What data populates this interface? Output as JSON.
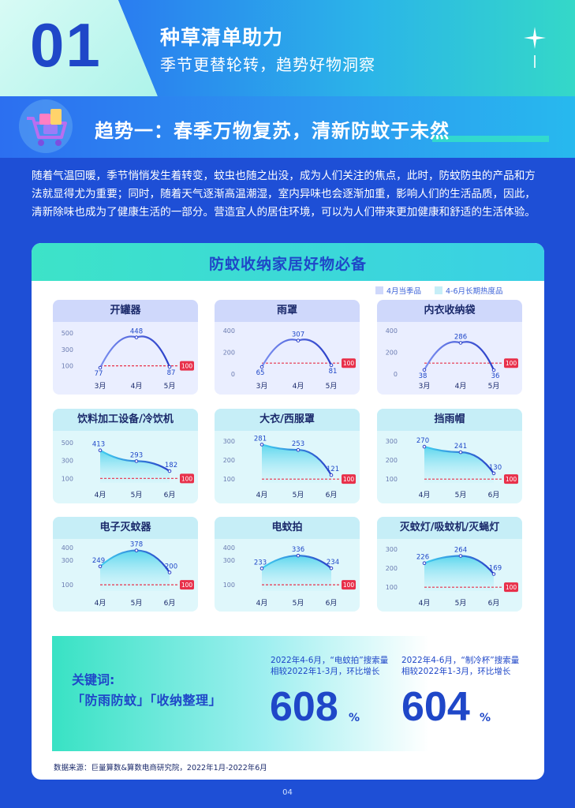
{
  "header": {
    "number": "01",
    "title": "种草清单助力",
    "subtitle": "季节更替轮转，趋势好物洞察"
  },
  "trend": {
    "title": "趋势一：春季万物复苏，清新防蚊于未然"
  },
  "intro": "随着气温回暖，季节悄悄发生着转变，蚊虫也随之出没，成为人们关注的焦点，此时，防蚊防虫的产品和方法就显得尤为重要；同时，随着天气逐渐高温潮湿，室内异味也会逐渐加重，影响人们的生活品质，因此，清新除味也成为了健康生活的一部分。营造宜人的居住环境，可以为人们带来更加健康和舒适的生活体验。",
  "panel": {
    "title": "防蚊收纳家居好物必备",
    "legend": [
      {
        "label": "4月当季品",
        "color": "#cfd8fb"
      },
      {
        "label": "4-6月长期热度品",
        "color": "#c6eef7"
      }
    ],
    "baseline_label": "100"
  },
  "chart_data": [
    {
      "type": "line",
      "title": "开罐器",
      "group": "4月当季品",
      "categories": [
        "3月",
        "4月",
        "5月"
      ],
      "values": [
        77,
        448,
        87
      ],
      "yticks": [
        100,
        300,
        500
      ],
      "ylim": [
        0,
        560
      ],
      "baseline": 100
    },
    {
      "type": "line",
      "title": "雨罩",
      "group": "4月当季品",
      "categories": [
        "3月",
        "4月",
        "5月"
      ],
      "values": [
        65,
        307,
        81
      ],
      "yticks": [
        0,
        200,
        400
      ],
      "ylim": [
        0,
        420
      ],
      "baseline": 100
    },
    {
      "type": "line",
      "title": "内衣收纳袋",
      "group": "4月当季品",
      "categories": [
        "3月",
        "4月",
        "5月"
      ],
      "values": [
        38,
        286,
        36
      ],
      "yticks": [
        0,
        200,
        400
      ],
      "ylim": [
        0,
        420
      ],
      "baseline": 100
    },
    {
      "type": "area",
      "title": "饮料加工设备/冷饮机",
      "group": "4-6月长期热度品",
      "categories": [
        "4月",
        "5月",
        "6月"
      ],
      "values": [
        413,
        293,
        182
      ],
      "yticks": [
        100,
        300,
        500
      ],
      "ylim": [
        50,
        560
      ],
      "baseline": 100
    },
    {
      "type": "area",
      "title": "大衣/西服罩",
      "group": "4-6月长期热度品",
      "categories": [
        "4月",
        "5月",
        "6月"
      ],
      "values": [
        281,
        253,
        121
      ],
      "yticks": [
        100,
        200,
        300
      ],
      "ylim": [
        80,
        320
      ],
      "baseline": 100
    },
    {
      "type": "area",
      "title": "挡雨帽",
      "group": "4-6月长期热度品",
      "categories": [
        "4月",
        "5月",
        "6月"
      ],
      "values": [
        270,
        241,
        130
      ],
      "yticks": [
        100,
        200,
        300
      ],
      "ylim": [
        80,
        320
      ],
      "baseline": 100
    },
    {
      "type": "area",
      "title": "电子灭蚊器",
      "group": "4-6月长期热度品",
      "categories": [
        "4月",
        "5月",
        "6月"
      ],
      "values": [
        249,
        378,
        200
      ],
      "yticks": [
        100,
        300,
        400
      ],
      "ylim": [
        50,
        420
      ],
      "baseline": 100
    },
    {
      "type": "area",
      "title": "电蚊拍",
      "group": "4-6月长期热度品",
      "categories": [
        "4月",
        "5月",
        "6月"
      ],
      "values": [
        233,
        336,
        234
      ],
      "yticks": [
        100,
        300,
        400
      ],
      "ylim": [
        50,
        420
      ],
      "baseline": 100
    },
    {
      "type": "area",
      "title": "灭蚊灯/吸蚊机/灭蝇灯",
      "group": "4-6月长期热度品",
      "categories": [
        "4月",
        "5月",
        "6月"
      ],
      "values": [
        226,
        264,
        169
      ],
      "yticks": [
        100,
        200,
        300
      ],
      "ylim": [
        80,
        320
      ],
      "baseline": 100
    }
  ],
  "keywords": {
    "label": "关键词:",
    "values": "「防雨防蚊」「收纳整理」"
  },
  "stats": [
    {
      "note_line1": "2022年4-6月，“电蚊拍”搜索量",
      "note_line2": "相较2022年1-3月，环比增长",
      "value": "608",
      "unit": "%"
    },
    {
      "note_line1": "2022年4-6月，“制冷杯”搜索量",
      "note_line2": "相较2022年1-3月，环比增长",
      "value": "604",
      "unit": "%"
    }
  ],
  "source": "数据来源：巨量算数&算数电商研究院，2022年1月-2022年6月",
  "page_number": "04",
  "colors": {
    "primary": "#1f47c8",
    "background": "#1e4fd6",
    "teal": "#3de3c8",
    "baseline": "#e8304a",
    "line": "#3a55d8"
  }
}
